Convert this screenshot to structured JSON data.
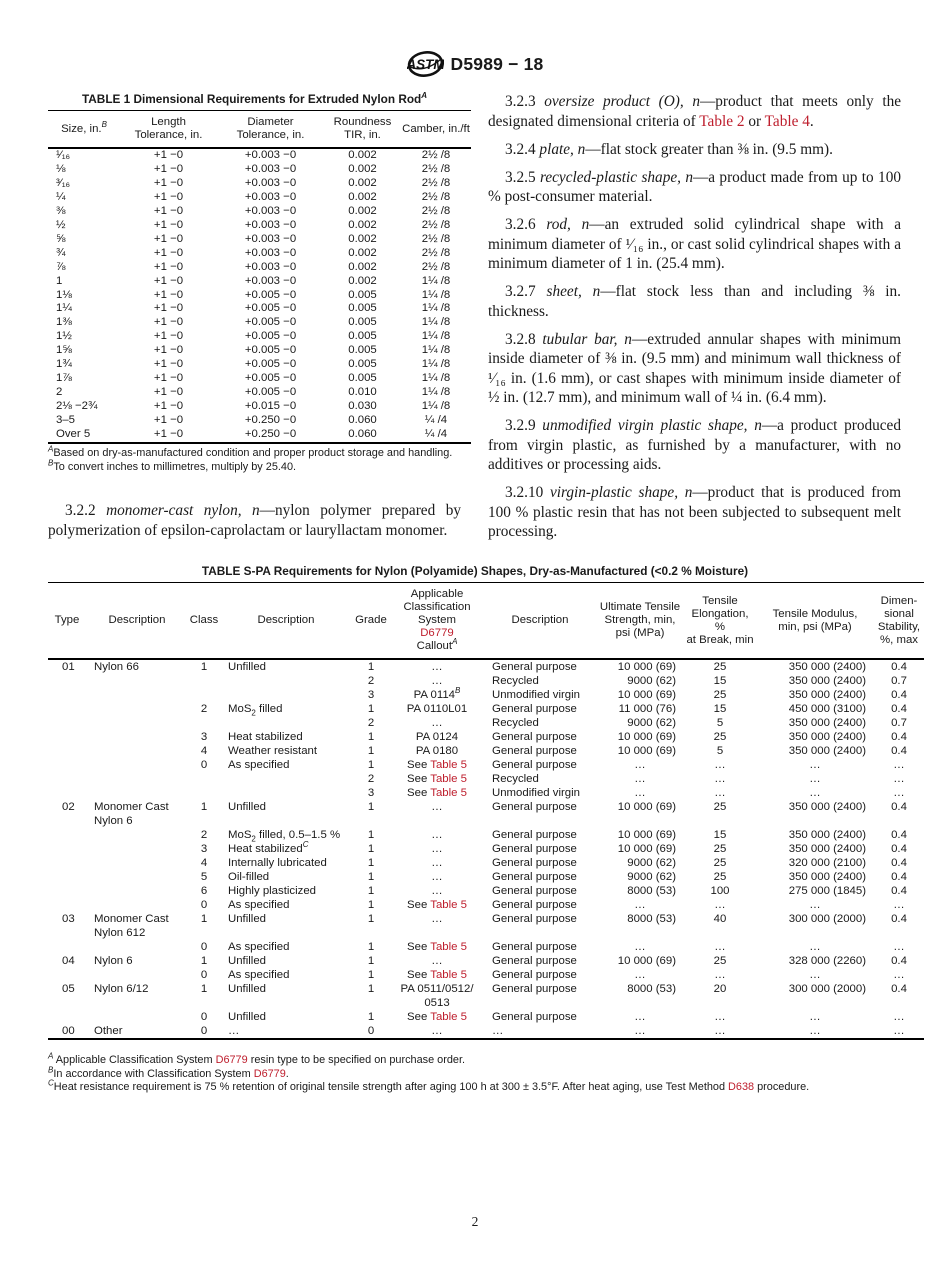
{
  "header": {
    "doc_number": "D5989 − 18"
  },
  "colors": {
    "link_red": "#be1e2d",
    "text": "#1a1a1a"
  },
  "table1": {
    "title": "TABLE 1 Dimensional Requirements for Extruded Nylon Rod{sup:A}",
    "columns": [
      "Size, in.{sup:B}",
      "Length{br}Tolerance, in.",
      "Diameter{br}Tolerance, in.",
      "Roundness{br}TIR, in.",
      "Camber, in./ft"
    ],
    "aligns": [
      "l",
      "c",
      "c",
      "c",
      "c"
    ],
    "widths": [
      70,
      95,
      105,
      75,
      68
    ],
    "rows": [
      [
        "¹⁄₁₆",
        "+1 −0",
        "+0.003 −0",
        "0.002",
        "2½ /8"
      ],
      [
        "⅛",
        "+1 −0",
        "+0.003 −0",
        "0.002",
        "2½ /8"
      ],
      [
        "³⁄₁₆",
        "+1 −0",
        "+0.003 −0",
        "0.002",
        "2½ /8"
      ],
      [
        "¼",
        "+1 −0",
        "+0.003 −0",
        "0.002",
        "2½ /8"
      ],
      [
        "⅜",
        "+1 −0",
        "+0.003 −0",
        "0.002",
        "2½ /8"
      ],
      [
        "½",
        "+1 −0",
        "+0.003 −0",
        "0.002",
        "2½ /8"
      ],
      [
        "⅝",
        "+1 −0",
        "+0.003 −0",
        "0.002",
        "2½ /8"
      ],
      [
        "¾",
        "+1 −0",
        "+0.003 −0",
        "0.002",
        "2½ /8"
      ],
      [
        "⅞",
        "+1 −0",
        "+0.003 −0",
        "0.002",
        "2½ /8"
      ],
      [
        "1",
        "+1 −0",
        "+0.003 −0",
        "0.002",
        "1¼ /8"
      ],
      [
        "1⅛",
        "+1 −0",
        "+0.005 −0",
        "0.005",
        "1¼ /8"
      ],
      [
        "1¼",
        "+1 −0",
        "+0.005 −0",
        "0.005",
        "1¼ /8"
      ],
      [
        "1⅜",
        "+1 −0",
        "+0.005 −0",
        "0.005",
        "1¼ /8"
      ],
      [
        "1½",
        "+1 −0",
        "+0.005 −0",
        "0.005",
        "1¼ /8"
      ],
      [
        "1⅝",
        "+1 −0",
        "+0.005 −0",
        "0.005",
        "1¼ /8"
      ],
      [
        "1¾",
        "+1 −0",
        "+0.005 −0",
        "0.005",
        "1¼ /8"
      ],
      [
        "1⅞",
        "+1 −0",
        "+0.005 −0",
        "0.005",
        "1¼ /8"
      ],
      [
        "2",
        "+1 −0",
        "+0.005 −0",
        "0.010",
        "1¼ /8"
      ],
      [
        "2⅛ −2¾",
        "+1 −0",
        "+0.015 −0",
        "0.030",
        "1¼ /8"
      ],
      [
        "3–5",
        "+1 −0",
        "+0.250 −0",
        "0.060",
        "¼ /4"
      ],
      [
        "Over 5",
        "+1 −0",
        "+0.250 −0",
        "0.060",
        "¼ /4"
      ]
    ],
    "footnotes": [
      "{sup:A}Based on dry-as-manufactured condition and proper product storage and handling.",
      "{sup:B}To convert inches to millimetres, multiply by 25.40."
    ]
  },
  "sections": {
    "left": [
      "3.2.2 {i:monomer-cast nylon, n}—nylon polymer prepared by polymerization of epsilon-caprolactam or lauryllactam monomer."
    ],
    "right": [
      "3.2.3 {i:oversize product (O), n}—product that meets only the designated dimensional criteria of {red:Table 2} or {red:Table 4}.",
      "3.2.4 {i:plate, n}—flat stock greater than ⅜ in. (9.5 mm).",
      "3.2.5 {i:recycled-plastic shape, n}—a product made from up to 100 % post-consumer material.",
      "3.2.6 {i:rod, n}—an extruded solid cylindrical shape with a minimum diameter of ¹⁄₁₆ in., or cast solid cylindrical shapes with a minimum diameter of 1 in. (25.4 mm).",
      "3.2.7 {i:sheet, n}—flat stock less than and including ⅜ in. thickness.",
      "3.2.8 {i:tubular bar, n}—extruded annular shapes with minimum inside diameter of ⅜ in. (9.5 mm) and minimum wall thickness of ¹⁄₁₆ in. (1.6 mm), or cast shapes with minimum inside diameter of ½ in. (12.7 mm), and minimum wall of ¼ in. (6.4 mm).",
      "3.2.9 {i:unmodified virgin plastic shape, n}—a product produced from virgin plastic, as furnished by a manufacturer, with no additives or processing aids.",
      "3.2.10 {i:virgin-plastic shape, n}—product that is produced from 100 % plastic resin that has not been subjected to subsequent melt processing."
    ]
  },
  "spa_table": {
    "title": "TABLE S-PA Requirements for Nylon (Polyamide) Shapes, Dry-as-Manufactured (<0.2 % Moisture)",
    "columns": [
      "Type",
      "Description",
      "Class",
      "Description",
      "Grade",
      "Applicable{br}Classification{br}System{br}{red:D6779}{br}Callout{sup:A}",
      "Description",
      "Ultimate Tensile{br}Strength, min,{br}psi (MPa)",
      "Tensile{br}Elongation, %{br}at Break, min",
      "Tensile Modulus,{br}min, psi (MPa)",
      "Dimen-{br}sional{br}Stability,{br}%, max"
    ],
    "aligns": [
      "l",
      "l",
      "c",
      "l",
      "c",
      "c",
      "l",
      "r",
      "c",
      "r",
      "c"
    ],
    "widths": [
      36,
      100,
      30,
      130,
      36,
      92,
      110,
      86,
      70,
      116,
      48
    ],
    "rows": [
      [
        "01",
        "Nylon 66",
        "1",
        "Unfilled",
        "1",
        "…",
        "General purpose",
        "10 000 (69)",
        "25",
        "350 000 (2400)",
        "0.4"
      ],
      [
        "",
        "",
        "",
        "",
        "2",
        "…",
        "Recycled",
        "9000 (62)",
        "15",
        "350 000 (2400)",
        "0.7"
      ],
      [
        "",
        "",
        "",
        "",
        "3",
        "PA 0114{sup:B}",
        "Unmodified virgin",
        "10 000 (69)",
        "25",
        "350 000 (2400)",
        "0.4"
      ],
      [
        "",
        "",
        "2",
        "MoS{sub:2} filled",
        "1",
        "PA 0110L01",
        "General purpose",
        "11 000 (76)",
        "15",
        "450 000 (3100)",
        "0.4"
      ],
      [
        "",
        "",
        "",
        "",
        "2",
        "…",
        "Recycled",
        "9000 (62)",
        "5",
        "350 000 (2400)",
        "0.7"
      ],
      [
        "",
        "",
        "3",
        "Heat stabilized",
        "1",
        "PA 0124",
        "General purpose",
        "10 000 (69)",
        "25",
        "350 000 (2400)",
        "0.4"
      ],
      [
        "",
        "",
        "4",
        "Weather resistant",
        "1",
        "PA 0180",
        "General purpose",
        "10 000 (69)",
        "5",
        "350 000 (2400)",
        "0.4"
      ],
      [
        "",
        "",
        "0",
        "As specified",
        "1",
        "See {red:Table 5}",
        "General purpose",
        "…",
        "…",
        "…",
        "…"
      ],
      [
        "",
        "",
        "",
        "",
        "2",
        "See {red:Table 5}",
        "Recycled",
        "…",
        "…",
        "…",
        "…"
      ],
      [
        "",
        "",
        "",
        "",
        "3",
        "See {red:Table 5}",
        "Unmodified virgin",
        "…",
        "…",
        "…",
        "…"
      ],
      [
        "02",
        "Monomer Cast{br}Nylon 6",
        "1",
        "Unfilled",
        "1",
        "…",
        "General purpose",
        "10 000 (69)",
        "25",
        "350 000 (2400)",
        "0.4"
      ],
      [
        "",
        "",
        "2",
        "MoS{sub:2} filled, 0.5–1.5 %",
        "1",
        "…",
        "General purpose",
        "10 000 (69)",
        "15",
        "350 000 (2400)",
        "0.4"
      ],
      [
        "",
        "",
        "3",
        "Heat stabilized{sup:C}",
        "1",
        "…",
        "General purpose",
        "10 000 (69)",
        "25",
        "350 000 (2400)",
        "0.4"
      ],
      [
        "",
        "",
        "4",
        "Internally lubricated",
        "1",
        "…",
        "General purpose",
        "9000 (62)",
        "25",
        "320 000 (2100)",
        "0.4"
      ],
      [
        "",
        "",
        "5",
        "Oil-filled",
        "1",
        "…",
        "General purpose",
        "9000 (62)",
        "25",
        "350 000 (2400)",
        "0.4"
      ],
      [
        "",
        "",
        "6",
        "Highly plasticized",
        "1",
        "…",
        "General purpose",
        "8000 (53)",
        "100",
        "275 000 (1845)",
        "0.4"
      ],
      [
        "",
        "",
        "0",
        "As specified",
        "1",
        "See {red:Table 5}",
        "General purpose",
        "…",
        "…",
        "…",
        "…"
      ],
      [
        "03",
        "Monomer Cast{br}Nylon 612",
        "1",
        "Unfilled",
        "1",
        "…",
        "General purpose",
        "8000 (53)",
        "40",
        "300 000 (2000)",
        "0.4"
      ],
      [
        "",
        "",
        "0",
        "As specified",
        "1",
        "See {red:Table 5}",
        "General purpose",
        "…",
        "…",
        "…",
        "…"
      ],
      [
        "04",
        "Nylon 6",
        "1",
        "Unfilled",
        "1",
        "…",
        "General purpose",
        "10 000 (69)",
        "25",
        "328 000 (2260)",
        "0.4"
      ],
      [
        "",
        "",
        "0",
        "As specified",
        "1",
        "See {red:Table 5}",
        "General purpose",
        "…",
        "…",
        "…",
        "…"
      ],
      [
        "05",
        "Nylon 6/12",
        "1",
        "Unfilled",
        "1",
        "PA 0511/0512/{br}0513",
        "General purpose",
        "8000 (53)",
        "20",
        "300 000 (2000)",
        "0.4"
      ],
      [
        "",
        "",
        "0",
        "Unfilled",
        "1",
        "See {red:Table 5}",
        "General purpose",
        "…",
        "…",
        "…",
        "…"
      ],
      [
        "00",
        "Other",
        "0",
        "…",
        "0",
        "…",
        "…",
        "…",
        "…",
        "…",
        "…"
      ]
    ],
    "footnotes": [
      "{sup:A} Applicable Classification System {red:D6779} resin type to be specified on purchase order.",
      "{sup:B}In accordance with Classification System {red:D6779}.",
      "{sup:C}Heat resistance requirement is 75 % retention of original tensile strength after aging 100 h at 300 ± 3.5°F. After heat aging, use Test Method {red:D638} procedure."
    ]
  },
  "footer": {
    "page_number": "2"
  }
}
